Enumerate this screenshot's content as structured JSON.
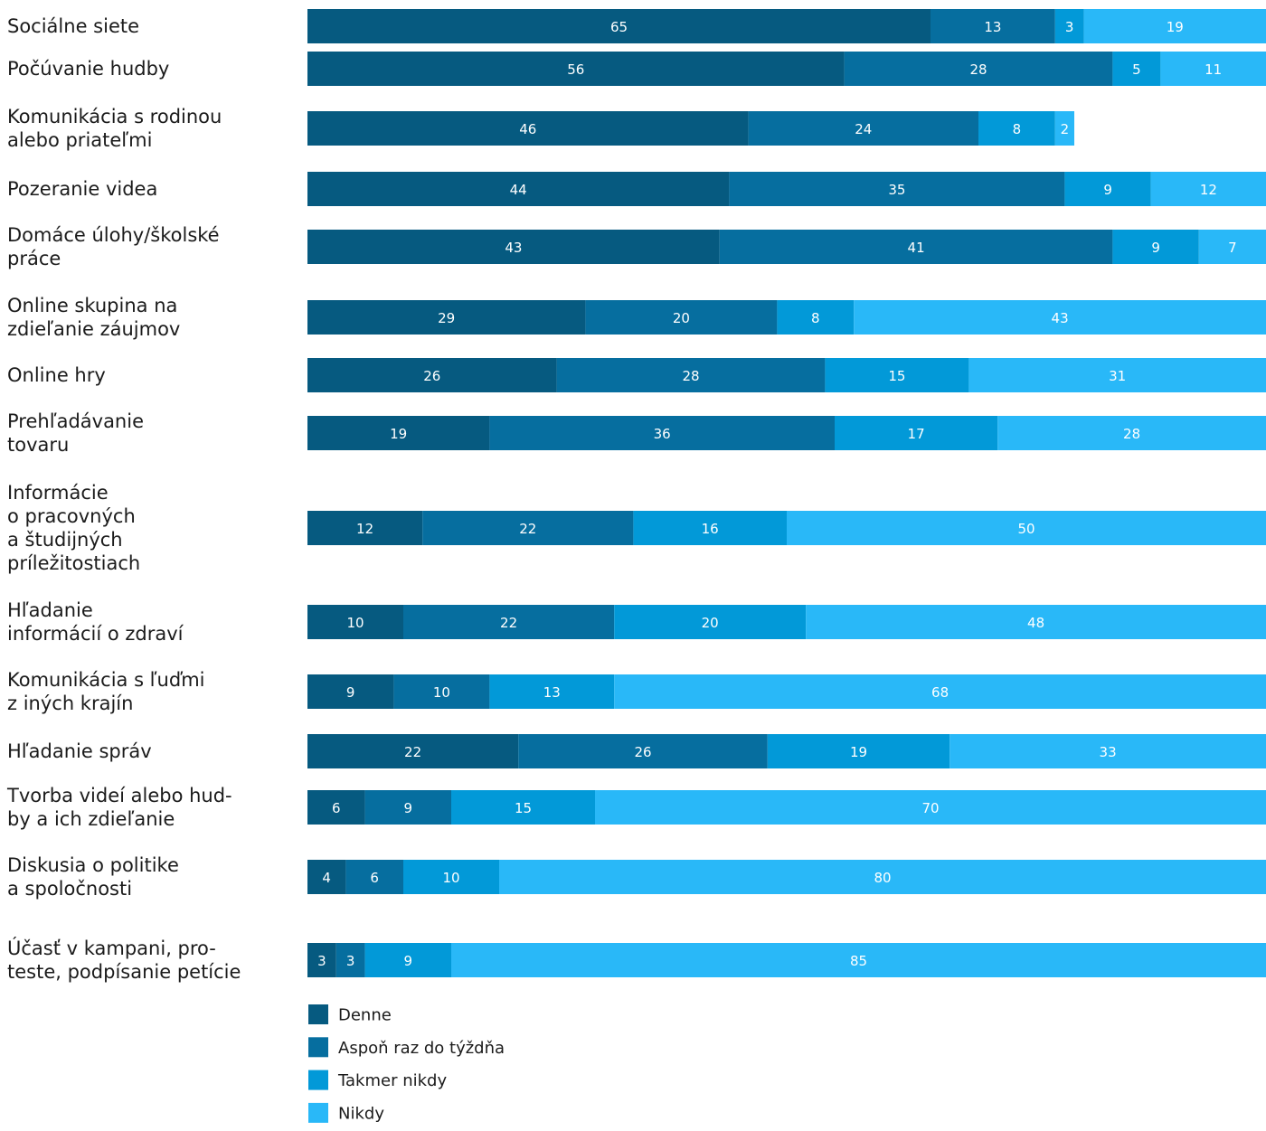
{
  "chart_data": {
    "type": "bar",
    "orientation": "horizontal",
    "stacked": true,
    "categories": [
      [
        "Sociálne siete"
      ],
      [
        "Počúvanie hudby"
      ],
      [
        "Komunikácia s rodinou",
        "alebo priateľmi"
      ],
      [
        "Pozeranie videa"
      ],
      [
        "Domáce úlohy/školské",
        "práce"
      ],
      [
        "Online skupina na",
        "zdieľanie záujmov"
      ],
      [
        "Online hry"
      ],
      [
        "Prehľadávanie",
        "tovaru"
      ],
      [
        "Informácie",
        "o pracovných",
        "a študijných",
        "príležitostiach"
      ],
      [
        "Hľadanie",
        "informácií o zdraví"
      ],
      [
        "Komunikácia s ľuďmi",
        "z iných krajín"
      ],
      [
        "Hľadanie správ"
      ],
      [
        "Tvorba videí alebo hud-",
        "by a ich zdieľanie"
      ],
      [
        "Diskusia o politike",
        "a spoločnosti"
      ],
      [
        "Účasť v kampani, pro-",
        "teste, podpísanie petície"
      ]
    ],
    "series": [
      {
        "name": "Denne",
        "color": "#065a80",
        "values": [
          65,
          56,
          46,
          44,
          43,
          29,
          26,
          19,
          12,
          10,
          9,
          22,
          6,
          4,
          3
        ]
      },
      {
        "name": "Aspoň raz do týždňa",
        "color": "#066e9f",
        "values": [
          13,
          28,
          24,
          35,
          41,
          20,
          28,
          36,
          22,
          22,
          10,
          26,
          9,
          6,
          3
        ]
      },
      {
        "name": "Takmer nikdy",
        "color": "#0299d8",
        "values": [
          3,
          5,
          8,
          9,
          9,
          8,
          15,
          17,
          16,
          20,
          13,
          19,
          15,
          10,
          9
        ]
      },
      {
        "name": "Nikdy",
        "color": "#29b8f8",
        "values": [
          19,
          11,
          2,
          12,
          7,
          43,
          31,
          28,
          50,
          48,
          68,
          33,
          70,
          80,
          85
        ]
      }
    ],
    "xlim": [
      0,
      100
    ],
    "legend_position": "bottom-left",
    "grid": false,
    "title": "",
    "xlabel": "",
    "ylabel": ""
  }
}
